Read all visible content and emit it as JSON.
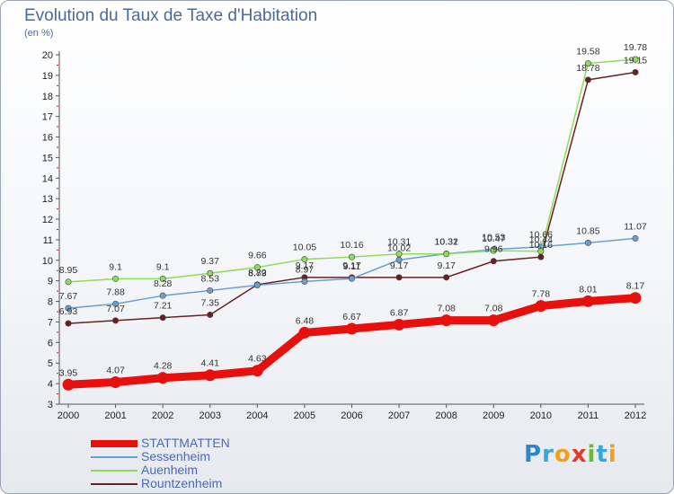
{
  "header": {
    "title": "Evolution du Taux de Taxe d'Habitation",
    "subtitle": "(en %)"
  },
  "logo": {
    "text": "Proxiti",
    "letters": [
      {
        "char": "P",
        "color": "#2e86c8"
      },
      {
        "char": "r",
        "color": "#3aa6d8"
      },
      {
        "char": "o",
        "color": "#f0a020"
      },
      {
        "char": "x",
        "color": "#e23a2a"
      },
      {
        "char": "i",
        "color": "#6cba3a"
      },
      {
        "char": "t",
        "color": "#3aa6d8"
      },
      {
        "char": "i",
        "color": "#f0a020"
      }
    ]
  },
  "chart_data": {
    "type": "line",
    "title": "Evolution du Taux de Taxe d'Habitation",
    "subtitle": "(en %)",
    "xlabel": "",
    "ylabel": "",
    "x": [
      "2000",
      "2001",
      "2002",
      "2003",
      "2004",
      "2005",
      "2006",
      "2007",
      "2008",
      "2009",
      "2010",
      "2011",
      "2012"
    ],
    "ylim": [
      3,
      20
    ],
    "yticks": [
      3,
      4,
      5,
      6,
      7,
      8,
      9,
      10,
      11,
      12,
      13,
      14,
      15,
      16,
      17,
      18,
      19,
      20
    ],
    "grid": false,
    "legend": "bottom-left",
    "series": [
      {
        "name": "STATTMATTEN",
        "color": "#e8100c",
        "width": 9,
        "values": [
          3.95,
          4.07,
          4.28,
          4.41,
          4.63,
          6.48,
          6.67,
          6.87,
          7.08,
          7.08,
          7.78,
          8.01,
          8.17
        ],
        "labels": [
          "3.95",
          "4.07",
          "4.28",
          "4.41",
          "4.63",
          "6.48",
          "6.67",
          "6.87",
          "7.08",
          "7.08",
          "7.78",
          "8.01",
          "8.17"
        ]
      },
      {
        "name": "Sessenheim",
        "color": "#6a9fcf",
        "width": 1.5,
        "values": [
          7.67,
          7.88,
          8.28,
          8.53,
          8.79,
          8.97,
          9.11,
          10.02,
          10.32,
          10.53,
          10.66,
          10.85,
          11.07
        ],
        "labels": [
          "7.67",
          "7.88",
          "8.28",
          "8.53",
          "8.79",
          "8.97",
          "9.11",
          "10.02",
          "10.32",
          "10.53",
          "10.66",
          "10.85",
          "11.07"
        ]
      },
      {
        "name": "Auenheim",
        "color": "#8edc5c",
        "width": 1.5,
        "values": [
          8.95,
          9.1,
          9.1,
          9.37,
          9.66,
          10.05,
          10.16,
          10.31,
          10.31,
          10.47,
          10.44,
          19.58,
          19.78
        ],
        "labels": [
          "8.95",
          "9.1",
          "9.1",
          "9.37",
          "9.66",
          "10.05",
          "10.16",
          "10.31",
          "10.31",
          "10.47",
          "10.44",
          "19.58",
          "19.78"
        ]
      },
      {
        "name": "Rountzenheim",
        "color": "#6a2020",
        "width": 1.5,
        "values": [
          6.93,
          7.07,
          7.21,
          7.35,
          8.82,
          9.17,
          9.17,
          9.17,
          9.17,
          9.96,
          10.16,
          18.78,
          19.15
        ],
        "labels": [
          "6.93",
          "7.07",
          "7.21",
          "7.35",
          "8.82",
          "9.17",
          "9.17",
          "9.17",
          "9.17",
          "9.96",
          "10.16",
          "18.78",
          "19.15"
        ]
      }
    ]
  }
}
